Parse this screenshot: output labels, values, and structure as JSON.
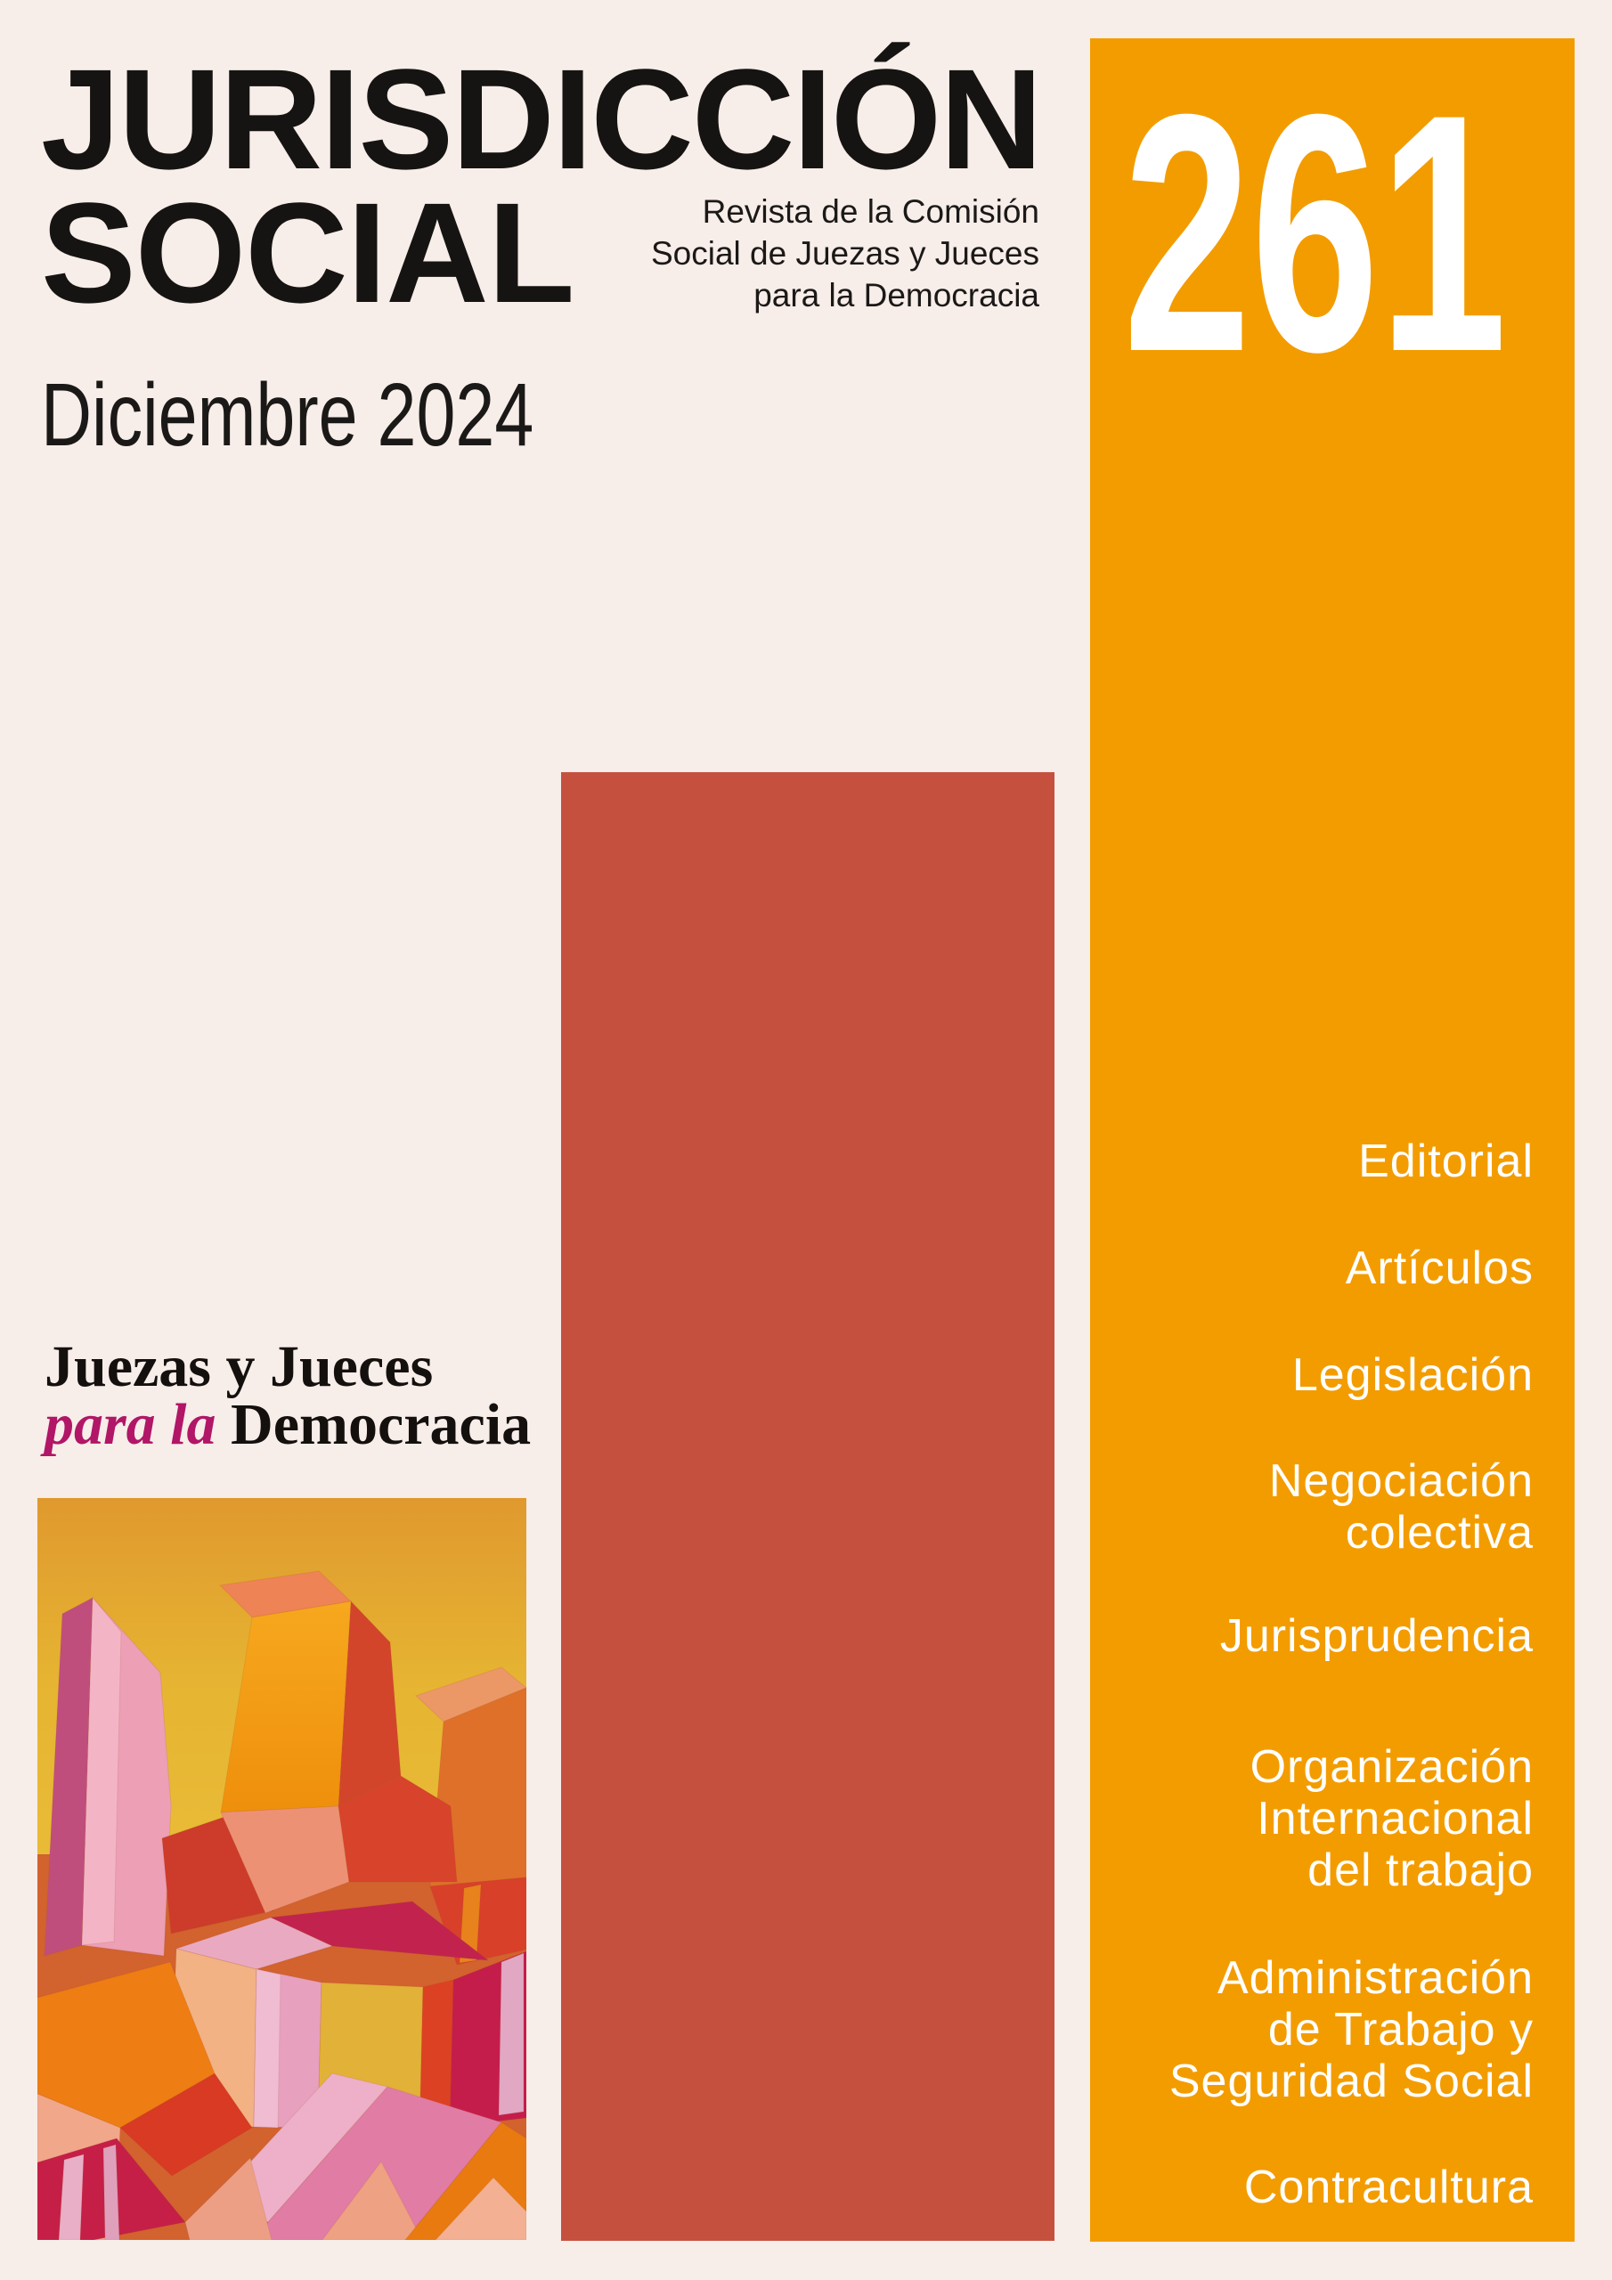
{
  "masthead": {
    "title_line1": "JURISDICCIÓN",
    "title_line2": "SOCIAL",
    "subtitle_lines": [
      "Revista de la Comisión",
      "Social de Juezas y Jueces",
      "para la Democracia"
    ],
    "issue_number": "261",
    "issue_date": "Diciembre 2024"
  },
  "association": {
    "name_line1": "Juezas y Jueces",
    "name_line2_italic": "para la",
    "name_line2_rest": "Democracia"
  },
  "contents_menu": {
    "items": [
      {
        "label": "Editorial",
        "lines": [
          "Editorial"
        ]
      },
      {
        "label": "Artículos",
        "lines": [
          "Artículos"
        ]
      },
      {
        "label": "Legislación",
        "lines": [
          "Legislación"
        ]
      },
      {
        "label": "Negociación colectiva",
        "lines": [
          "Negociación",
          "colectiva"
        ]
      },
      {
        "label": "Jurisprudencia",
        "lines": [
          "Jurisprudencia"
        ]
      },
      {
        "label": "Organización Internacional del trabajo",
        "lines": [
          "Organización",
          "Internacional",
          "del trabajo"
        ]
      },
      {
        "label": "Administración de Trabajo y Seguridad Social",
        "lines": [
          "Administración",
          "de Trabajo y",
          "Seguridad Social"
        ]
      },
      {
        "label": "Contracultura",
        "lines": [
          "Contracultura"
        ]
      }
    ]
  },
  "artwork": {
    "description": "Abstract geometric painting with trapezoid towers and cubes in yellow, orange, salmon, pink, red and magenta"
  },
  "colors": {
    "background_cream": "#F7EDE9",
    "accent_orange": "#F39C00",
    "accent_red": "#C5503E",
    "accent_magenta": "#B11667",
    "text_black": "#161412",
    "menu_text": "#FFFFFF"
  }
}
